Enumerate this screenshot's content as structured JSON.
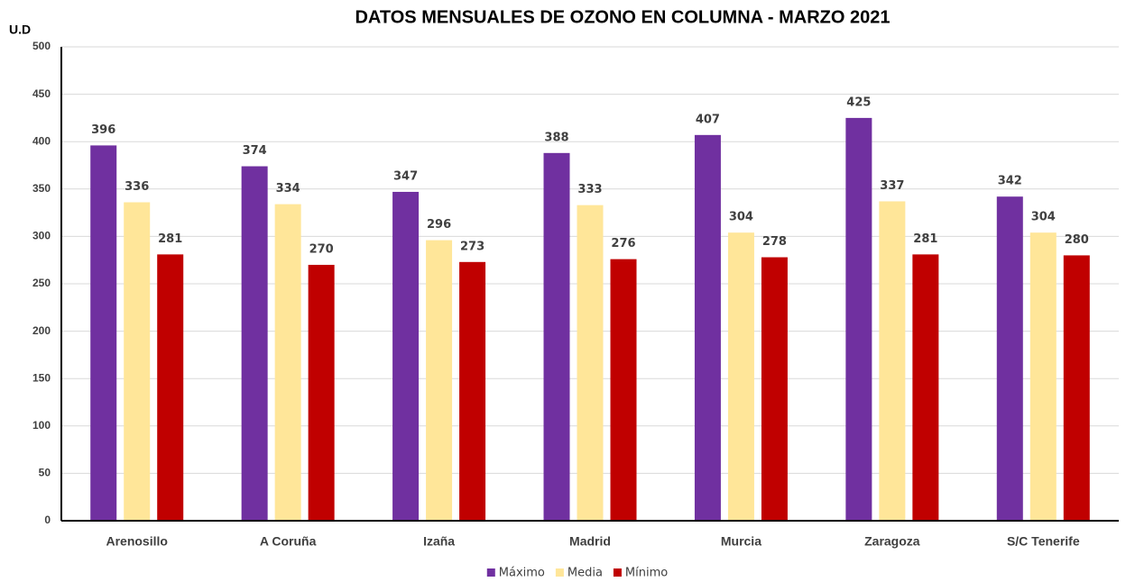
{
  "chart_data": {
    "type": "bar",
    "title": "DATOS MENSUALES DE OZONO EN COLUMNA - MARZO 2021",
    "y_label": "U.D",
    "categories": [
      "Arenosillo",
      "A Coruña",
      "Izaña",
      "Madrid",
      "Murcia",
      "Zaragoza",
      "S/C Tenerife"
    ],
    "series": [
      {
        "name": "Máximo",
        "color": "#7030a0",
        "values": [
          396,
          374,
          347,
          388,
          407,
          425,
          342
        ]
      },
      {
        "name": "Media",
        "color": "#ffe699",
        "values": [
          336,
          334,
          296,
          333,
          304,
          337,
          304
        ]
      },
      {
        "name": "Mínimo",
        "color": "#c00000",
        "values": [
          281,
          270,
          273,
          276,
          278,
          281,
          280
        ]
      }
    ],
    "ylim": [
      0,
      500
    ],
    "yticks": [
      0,
      50,
      100,
      150,
      200,
      250,
      300,
      350,
      400,
      450,
      500
    ],
    "grid": true,
    "legend": "bottom"
  }
}
